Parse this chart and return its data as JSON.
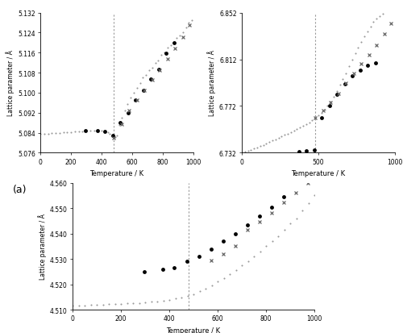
{
  "ylabel": "Lattice parameter / Å",
  "xlabel": "Temperature / K",
  "curie_temp": 480,
  "plot_a": {
    "ylim": [
      5.076,
      5.132
    ],
    "yticks": [
      5.076,
      5.084,
      5.092,
      5.1,
      5.108,
      5.116,
      5.124,
      5.132
    ],
    "xlim": [
      0,
      1000
    ],
    "xticks": [
      0,
      200,
      400,
      600,
      800,
      1000
    ],
    "small_circles": {
      "T": [
        0,
        25,
        50,
        75,
        100,
        125,
        150,
        175,
        200,
        225,
        250,
        275,
        300,
        325,
        350,
        375,
        400,
        420,
        440,
        455,
        470,
        480,
        490,
        500,
        515,
        530,
        550,
        570,
        590,
        610,
        630,
        650,
        670,
        690,
        710,
        730,
        750,
        770,
        790,
        810,
        830,
        850,
        870,
        890,
        910,
        930,
        950,
        970,
        990
      ],
      "val": [
        5.0835,
        5.0836,
        5.0837,
        5.0838,
        5.0839,
        5.084,
        5.0841,
        5.0842,
        5.0843,
        5.0844,
        5.0845,
        5.0846,
        5.0847,
        5.0848,
        5.0848,
        5.0849,
        5.0848,
        5.0845,
        5.0841,
        5.0835,
        5.0825,
        5.0818,
        5.0822,
        5.083,
        5.087,
        5.09,
        5.093,
        5.0955,
        5.098,
        5.1,
        5.102,
        5.104,
        5.106,
        5.107,
        5.109,
        5.11,
        5.112,
        5.113,
        5.115,
        5.116,
        5.118,
        5.119,
        5.12,
        5.122,
        5.123,
        5.124,
        5.126,
        5.128,
        5.129
      ]
    },
    "filled_circles": {
      "T": [
        295,
        373,
        420,
        473,
        523,
        573,
        623,
        673,
        723,
        773,
        823,
        873
      ],
      "val": [
        5.0847,
        5.0848,
        5.0844,
        5.0828,
        5.088,
        5.0918,
        5.097,
        5.101,
        5.1055,
        5.1092,
        5.1158,
        5.1198
      ]
    },
    "crosses": {
      "T": [
        480,
        530,
        580,
        630,
        680,
        730,
        780,
        830,
        880,
        930,
        975
      ],
      "val": [
        5.0818,
        5.0875,
        5.093,
        5.097,
        5.101,
        5.105,
        5.109,
        5.1135,
        5.1178,
        5.1222,
        5.127
      ]
    }
  },
  "plot_b": {
    "ylim": [
      6.732,
      6.852
    ],
    "yticks": [
      6.732,
      6.772,
      6.812,
      6.852
    ],
    "xlim": [
      0,
      1000
    ],
    "xticks": [
      0,
      500,
      1000
    ],
    "small_circles": {
      "T": [
        0,
        20,
        40,
        60,
        80,
        100,
        120,
        140,
        160,
        180,
        200,
        220,
        240,
        260,
        280,
        300,
        320,
        340,
        360,
        380,
        400,
        420,
        440,
        460,
        480,
        500,
        520,
        540,
        560,
        580,
        600,
        620,
        640,
        660,
        680,
        700,
        720,
        740,
        760,
        780,
        800,
        820,
        840,
        860,
        880,
        900,
        920,
        940,
        960,
        980,
        1000
      ],
      "val": [
        6.732,
        6.7328,
        6.7336,
        6.7346,
        6.7356,
        6.7366,
        6.7376,
        6.7388,
        6.74,
        6.7412,
        6.7424,
        6.7436,
        6.7448,
        6.746,
        6.7472,
        6.7484,
        6.7497,
        6.751,
        6.7524,
        6.7538,
        6.7552,
        6.7566,
        6.7581,
        6.7596,
        6.7612,
        6.7638,
        6.766,
        6.769,
        6.772,
        6.776,
        6.78,
        6.785,
        6.79,
        6.795,
        6.8,
        6.806,
        6.812,
        6.817,
        6.822,
        6.827,
        6.832,
        6.836,
        6.84,
        6.844,
        6.847,
        6.849,
        6.851,
        6.853,
        6.855,
        6.857,
        6.859
      ]
    },
    "filled_circles": {
      "T": [
        373,
        420,
        473,
        523,
        573,
        623,
        673,
        723,
        773,
        823,
        873
      ],
      "val": [
        6.733,
        6.7335,
        6.7342,
        6.762,
        6.772,
        6.782,
        6.791,
        6.798,
        6.803,
        6.807,
        6.809
      ]
    },
    "crosses": {
      "T": [
        480,
        530,
        580,
        630,
        680,
        730,
        780,
        830,
        880,
        930,
        975
      ],
      "val": [
        6.762,
        6.768,
        6.775,
        6.783,
        6.792,
        6.8,
        6.808,
        6.816,
        6.824,
        6.834,
        6.843
      ]
    }
  },
  "plot_c": {
    "ylim": [
      4.51,
      4.56
    ],
    "yticks": [
      4.51,
      4.52,
      4.53,
      4.54,
      4.55,
      4.56
    ],
    "xlim": [
      0,
      1000
    ],
    "xticks": [
      0,
      200,
      400,
      600,
      800,
      1000
    ],
    "small_circles": {
      "T": [
        0,
        25,
        50,
        75,
        100,
        125,
        150,
        175,
        200,
        225,
        250,
        275,
        300,
        325,
        350,
        375,
        400,
        425,
        450,
        475,
        500,
        525,
        550,
        575,
        600,
        625,
        650,
        675,
        700,
        725,
        750,
        775,
        800,
        825,
        850,
        875,
        900,
        925,
        950,
        975,
        1000
      ],
      "val": [
        4.5115,
        4.5116,
        4.5117,
        4.5118,
        4.5119,
        4.512,
        4.5121,
        4.5122,
        4.5123,
        4.5124,
        4.5125,
        4.5127,
        4.5129,
        4.5131,
        4.5133,
        4.5136,
        4.5139,
        4.5143,
        4.5148,
        4.5154,
        4.5162,
        4.5172,
        4.5183,
        4.5196,
        4.521,
        4.5225,
        4.524,
        4.5257,
        4.5274,
        4.5292,
        4.5311,
        4.533,
        4.535,
        4.537,
        4.539,
        4.5415,
        4.544,
        4.546,
        4.549,
        4.552,
        4.555
      ]
    },
    "filled_circles": {
      "T": [
        295,
        373,
        420,
        473,
        523,
        573,
        623,
        673,
        723,
        773,
        823,
        873
      ],
      "val": [
        4.525,
        4.5258,
        4.5265,
        4.529,
        4.531,
        4.534,
        4.537,
        4.54,
        4.5435,
        4.547,
        4.5505,
        4.5545
      ]
    },
    "crosses": {
      "T": [
        573,
        623,
        673,
        723,
        773,
        823,
        873,
        923,
        973
      ],
      "val": [
        4.5295,
        4.532,
        4.535,
        4.5415,
        4.5448,
        4.5482,
        4.5522,
        4.5562,
        4.56
      ]
    }
  },
  "dot_color": "#999999",
  "filled_color": "#000000",
  "cross_color": "#666666",
  "curie_line_color": "#999999"
}
